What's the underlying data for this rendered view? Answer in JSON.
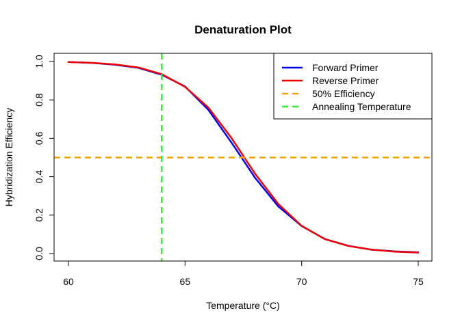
{
  "chart_data": {
    "type": "line",
    "title": "Denaturation Plot",
    "xlabel": "Temperature (°C)",
    "ylabel": "Hybridization Efficiency",
    "xlim": [
      60,
      75
    ],
    "ylim": [
      0,
      1
    ],
    "x_ticks": [
      60,
      65,
      70,
      75
    ],
    "y_ticks": [
      0.0,
      0.2,
      0.4,
      0.6,
      0.8,
      1.0
    ],
    "y_tick_labels": [
      "0.0",
      "0.2",
      "0.4",
      "0.6",
      "0.8",
      "1.0"
    ],
    "grid": false,
    "legend_position": "top-right",
    "x": [
      60,
      61,
      62,
      63,
      64,
      65,
      66,
      67,
      68,
      69,
      70,
      71,
      72,
      73,
      74,
      75
    ],
    "series": [
      {
        "name": "Forward Primer",
        "color": "#0000ee",
        "style": "solid",
        "values": [
          0.997,
          0.993,
          0.983,
          0.967,
          0.931,
          0.87,
          0.748,
          0.576,
          0.395,
          0.245,
          0.143,
          0.075,
          0.04,
          0.02,
          0.011,
          0.006
        ]
      },
      {
        "name": "Reverse Primer",
        "color": "#ee0000",
        "style": "solid",
        "values": [
          0.997,
          0.993,
          0.985,
          0.969,
          0.934,
          0.868,
          0.76,
          0.6,
          0.416,
          0.258,
          0.144,
          0.075,
          0.04,
          0.02,
          0.01,
          0.005
        ]
      }
    ],
    "reference_lines": [
      {
        "name": "50% Efficiency",
        "orientation": "horizontal",
        "value": 0.5,
        "color": "#f5a300",
        "style": "dashed"
      },
      {
        "name": "Annealing Temperature",
        "orientation": "vertical",
        "value": 64,
        "color": "#33ee33",
        "style": "dashed"
      }
    ]
  }
}
